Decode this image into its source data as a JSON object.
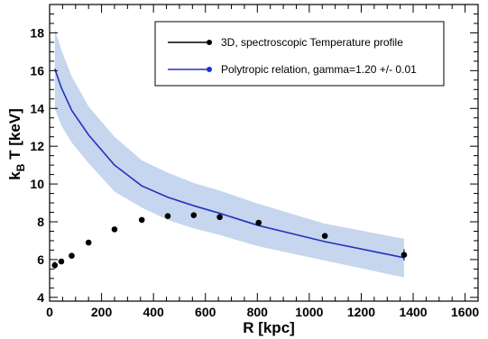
{
  "chart_data": {
    "type": "line",
    "xlabel": "R [kpc]",
    "ylabel": {
      "main": "k",
      "sub": "B",
      "rest": " T [keV]"
    },
    "xlim": [
      0,
      1650
    ],
    "ylim": [
      3.8,
      19.5
    ],
    "xticks": [
      0,
      200,
      400,
      600,
      800,
      1000,
      1200,
      1400,
      1600
    ],
    "yticks": [
      4,
      6,
      8,
      10,
      12,
      14,
      16,
      18
    ],
    "grid": false,
    "legend_position": "top-right",
    "series": [
      {
        "name": "3D, spectroscopic Temperature profile",
        "kind": "scatter",
        "color": "#000000",
        "x": [
          20,
          45,
          85,
          150,
          250,
          355,
          455,
          555,
          655,
          805,
          1060,
          1365
        ],
        "y": [
          5.7,
          5.9,
          6.2,
          6.9,
          7.6,
          8.1,
          8.3,
          8.35,
          8.25,
          7.95,
          7.25,
          6.25
        ],
        "yerr": [
          0.2,
          0.1,
          0.1,
          0.1,
          0.1,
          0.1,
          0.1,
          0.1,
          0.1,
          0.1,
          0.1,
          0.3
        ]
      },
      {
        "name": "Polytropic relation, gamma=1.20 +/- 0.01",
        "kind": "line",
        "color": "#2233bb",
        "band_color": "#c5d6ee",
        "x": [
          20,
          45,
          85,
          150,
          250,
          355,
          455,
          555,
          655,
          805,
          1060,
          1365
        ],
        "y": [
          16.1,
          15.1,
          13.9,
          12.6,
          11.0,
          9.9,
          9.3,
          8.85,
          8.45,
          7.8,
          6.95,
          6.1
        ],
        "y_upper": [
          18.2,
          17.1,
          15.7,
          14.1,
          12.5,
          11.25,
          10.6,
          10.05,
          9.65,
          8.95,
          7.9,
          7.1
        ],
        "y_lower": [
          14.0,
          13.1,
          12.2,
          11.1,
          9.6,
          8.75,
          8.1,
          7.65,
          7.3,
          6.7,
          5.95,
          5.05
        ]
      }
    ]
  }
}
